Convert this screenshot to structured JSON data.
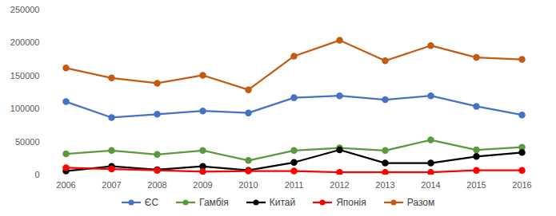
{
  "chart_data": {
    "type": "line",
    "categories": [
      "2006",
      "2007",
      "2008",
      "2009",
      "2010",
      "2011",
      "2012",
      "2013",
      "2014",
      "2015",
      "2016"
    ],
    "series": [
      {
        "name": "ЄС",
        "color": "#4472c4",
        "marker": "circle",
        "line_style": "solid",
        "values": [
          111000,
          87000,
          92000,
          97000,
          94000,
          117000,
          120000,
          114000,
          120000,
          104000,
          91000
        ]
      },
      {
        "name": "Гамбія",
        "color": "#5a9a3c",
        "marker": "circle",
        "line_style": "solid",
        "values": [
          32000,
          37000,
          31000,
          37000,
          22000,
          37000,
          41000,
          37000,
          53000,
          38000,
          42000
        ]
      },
      {
        "name": "Китай",
        "color": "#000000",
        "marker": "circle",
        "line_style": "solid",
        "values": [
          6000,
          13000,
          8000,
          13000,
          7000,
          19000,
          38000,
          18000,
          18000,
          28000,
          34000
        ]
      },
      {
        "name": "Японія",
        "color": "#ff0000",
        "marker": "circle",
        "line_style": "solid",
        "values": [
          11000,
          9000,
          7000,
          5000,
          6000,
          6000,
          4000,
          4000,
          4000,
          7000,
          7000
        ]
      },
      {
        "name": "Разом",
        "color": "#c55a11",
        "marker": "circle",
        "line_style": "solid",
        "values": [
          162000,
          147000,
          139000,
          151000,
          129000,
          180000,
          204000,
          173000,
          196000,
          178000,
          175000
        ]
      }
    ],
    "ylim": [
      0,
      250000
    ],
    "yticks": [
      0,
      50000,
      100000,
      150000,
      200000,
      250000
    ],
    "grid": false,
    "legend": "bottom"
  }
}
